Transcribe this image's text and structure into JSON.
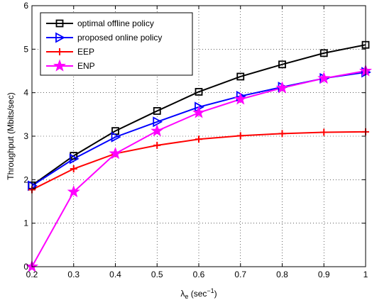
{
  "chart_data": {
    "type": "line",
    "title": "",
    "xlabel": "λ",
    "xlabel_sub": "e",
    "xlabel_unit_prefix": " (sec",
    "xlabel_sup": "−1",
    "xlabel_unit_suffix": ")",
    "ylabel": "Throughput (Mbits/sec)",
    "xlim": [
      0.2,
      1.0
    ],
    "ylim": [
      0,
      6
    ],
    "grid": true,
    "legend_position": "top-left",
    "xticks": [
      0.2,
      0.3,
      0.4,
      0.5,
      0.6,
      0.7,
      0.8,
      0.9,
      1.0
    ],
    "xtick_labels": [
      "0.2",
      "0.3",
      "0.4",
      "0.5",
      "0.6",
      "0.7",
      "0.8",
      "0.9",
      "1"
    ],
    "yticks": [
      0,
      1,
      2,
      3,
      4,
      5,
      6
    ],
    "ytick_labels": [
      "0",
      "1",
      "2",
      "3",
      "4",
      "5",
      "6"
    ],
    "x": [
      0.2,
      0.3,
      0.4,
      0.5,
      0.6,
      0.7,
      0.8,
      0.9,
      1.0
    ],
    "series": [
      {
        "name": "optimal offline policy",
        "color": "#000000",
        "marker": "square",
        "values": [
          1.87,
          2.55,
          3.12,
          3.58,
          4.02,
          4.37,
          4.65,
          4.91,
          5.1
        ]
      },
      {
        "name": "proposed online policy",
        "color": "#0000ff",
        "marker": "triangle-right",
        "values": [
          1.86,
          2.48,
          2.98,
          3.33,
          3.67,
          3.92,
          4.13,
          4.33,
          4.47
        ]
      },
      {
        "name": "EEP",
        "color": "#ff0000",
        "marker": "plus",
        "values": [
          1.77,
          2.25,
          2.6,
          2.79,
          2.93,
          3.01,
          3.06,
          3.09,
          3.1
        ]
      },
      {
        "name": "ENP",
        "color": "#ff00ff",
        "marker": "star",
        "values": [
          0.0,
          1.72,
          2.6,
          3.12,
          3.54,
          3.85,
          4.11,
          4.33,
          4.5
        ]
      }
    ]
  }
}
